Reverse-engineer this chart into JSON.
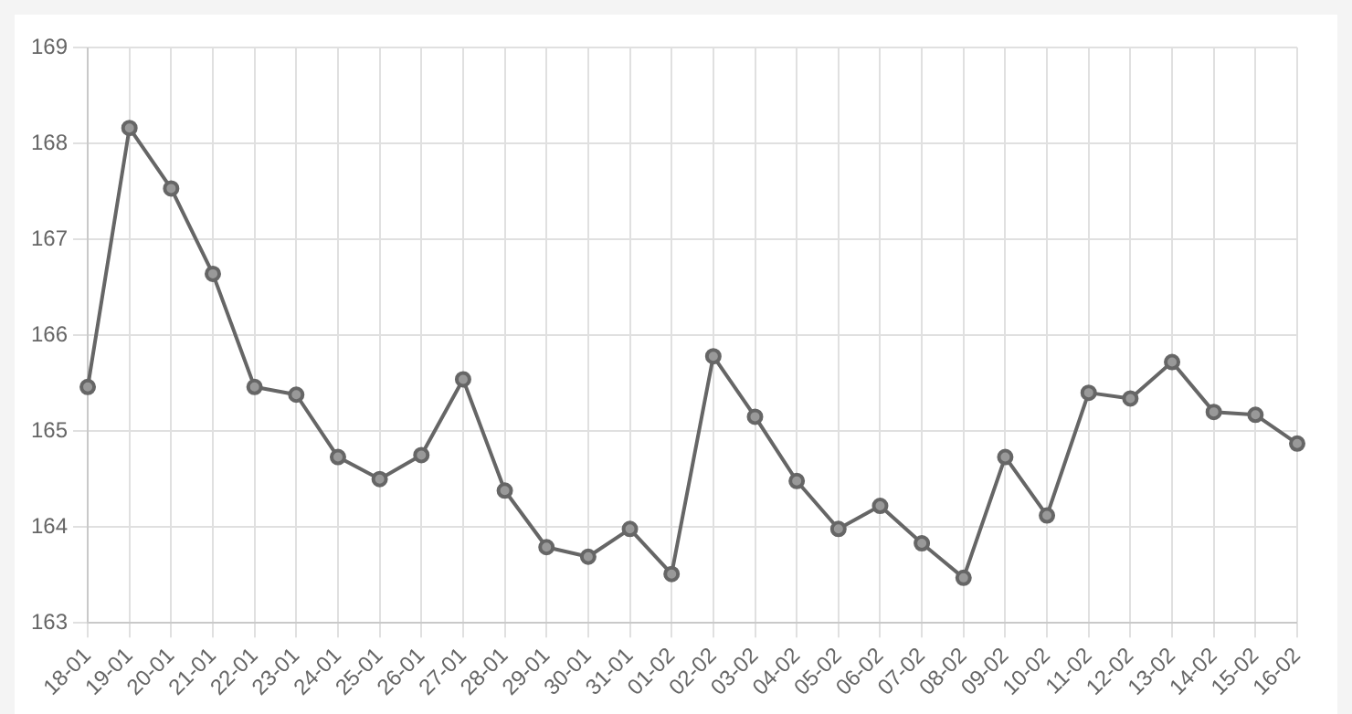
{
  "chart_data": {
    "type": "line",
    "categories": [
      "18-01",
      "19-01",
      "20-01",
      "21-01",
      "22-01",
      "23-01",
      "24-01",
      "25-01",
      "26-01",
      "27-01",
      "28-01",
      "29-01",
      "30-01",
      "31-01",
      "01-02",
      "02-02",
      "03-02",
      "04-02",
      "05-02",
      "06-02",
      "07-02",
      "08-02",
      "09-02",
      "10-02",
      "11-02",
      "12-02",
      "13-02",
      "14-02",
      "15-02",
      "16-02"
    ],
    "series": [
      {
        "color": "#666666",
        "values": [
          165.46,
          168.16,
          167.53,
          166.64,
          165.46,
          165.38,
          164.73,
          164.5,
          164.75,
          165.54,
          164.38,
          163.79,
          163.69,
          163.98,
          163.51,
          165.78,
          165.15,
          164.48,
          163.98,
          164.22,
          163.83,
          163.47,
          164.73,
          164.12,
          165.4,
          165.34,
          165.72,
          165.2,
          165.17,
          164.87
        ]
      }
    ],
    "ylim": [
      163,
      169
    ],
    "yticks": [
      163,
      164,
      165,
      166,
      167,
      168,
      169
    ],
    "grid": true,
    "marker": "circle",
    "line_style": "solid"
  }
}
